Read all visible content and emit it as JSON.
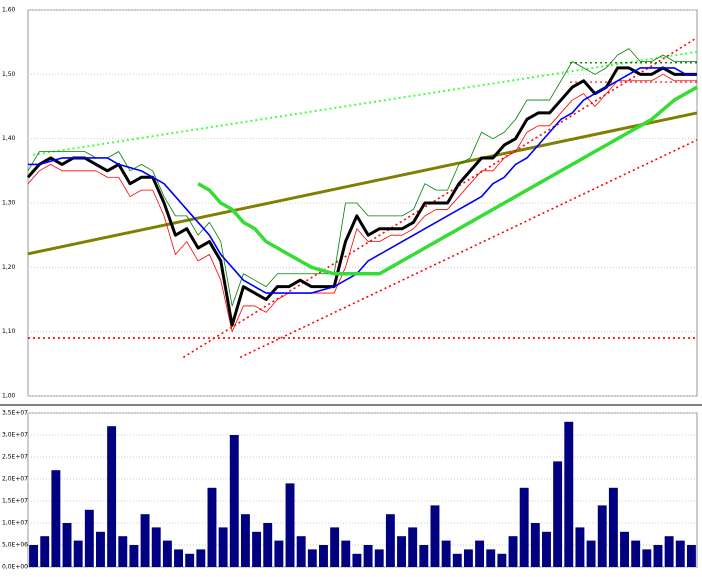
{
  "chart_data": [
    {
      "type": "line",
      "categories": [
        null,
        null,
        null,
        null,
        null,
        null,
        null,
        null,
        null,
        null,
        null,
        null,
        null,
        null,
        null,
        null,
        null,
        null,
        null,
        null,
        null,
        null,
        null,
        null,
        null,
        null,
        null,
        null,
        null,
        null,
        null,
        null,
        null,
        null,
        null,
        null,
        null,
        null,
        null,
        null,
        null,
        null,
        null,
        null,
        null,
        null,
        null,
        null,
        null,
        null,
        null,
        null,
        null,
        null,
        null,
        null,
        null,
        null,
        null,
        null
      ],
      "ylim": [
        1.0,
        1.6
      ],
      "yticks": [
        {
          "value": 1.0,
          "label": "1,00"
        },
        {
          "value": 1.1,
          "label": "1,10"
        },
        {
          "value": 1.2,
          "label": "1,20"
        },
        {
          "value": 1.3,
          "label": "1,30"
        },
        {
          "value": 1.4,
          "label": "1,40"
        },
        {
          "value": 1.5,
          "label": "1,50"
        },
        {
          "value": 1.6,
          "label": "1,60"
        }
      ],
      "grid": true,
      "series": [
        {
          "color": "#008000",
          "width": 0.8,
          "values": [
            1.35,
            1.38,
            1.38,
            1.38,
            1.38,
            1.38,
            1.37,
            1.37,
            1.38,
            1.35,
            1.36,
            1.35,
            1.31,
            1.28,
            1.28,
            1.25,
            1.27,
            1.24,
            1.14,
            1.19,
            1.18,
            1.17,
            1.19,
            1.19,
            1.19,
            1.19,
            1.19,
            1.19,
            1.3,
            1.3,
            1.28,
            1.28,
            1.28,
            1.28,
            1.29,
            1.33,
            1.32,
            1.32,
            1.36,
            1.37,
            1.41,
            1.4,
            1.41,
            1.43,
            1.46,
            1.46,
            1.46,
            1.49,
            1.52,
            1.51,
            1.5,
            1.51,
            1.53,
            1.54,
            1.52,
            1.52,
            1.53,
            1.52,
            1.52,
            1.52
          ]
        },
        {
          "color": "#ff0000",
          "width": 0.8,
          "values": [
            1.33,
            1.35,
            1.36,
            1.35,
            1.35,
            1.35,
            1.35,
            1.34,
            1.34,
            1.31,
            1.32,
            1.32,
            1.28,
            1.22,
            1.24,
            1.21,
            1.22,
            1.18,
            1.1,
            1.14,
            1.14,
            1.13,
            1.15,
            1.16,
            1.16,
            1.16,
            1.16,
            1.16,
            1.2,
            1.26,
            1.24,
            1.24,
            1.25,
            1.25,
            1.26,
            1.28,
            1.29,
            1.29,
            1.31,
            1.33,
            1.35,
            1.35,
            1.37,
            1.38,
            1.41,
            1.42,
            1.42,
            1.44,
            1.46,
            1.47,
            1.45,
            1.47,
            1.49,
            1.49,
            1.49,
            1.49,
            1.5,
            1.49,
            1.49,
            1.49
          ]
        },
        {
          "color": "#000000",
          "width": 3,
          "values": [
            1.34,
            1.36,
            1.37,
            1.36,
            1.37,
            1.37,
            1.36,
            1.35,
            1.36,
            1.33,
            1.34,
            1.34,
            1.3,
            1.25,
            1.26,
            1.23,
            1.24,
            1.21,
            1.11,
            1.17,
            1.16,
            1.15,
            1.17,
            1.17,
            1.18,
            1.17,
            1.17,
            1.17,
            1.24,
            1.28,
            1.25,
            1.26,
            1.26,
            1.26,
            1.27,
            1.3,
            1.3,
            1.3,
            1.33,
            1.35,
            1.37,
            1.37,
            1.39,
            1.4,
            1.43,
            1.44,
            1.44,
            1.46,
            1.48,
            1.49,
            1.47,
            1.48,
            1.51,
            1.51,
            1.5,
            1.5,
            1.51,
            1.5,
            1.5,
            1.5
          ]
        },
        {
          "color": "#0000ff",
          "width": 1.6,
          "values": [
            1.36,
            1.36,
            1.365,
            1.37,
            1.37,
            1.37,
            1.37,
            1.37,
            1.36,
            1.355,
            1.35,
            1.34,
            1.33,
            1.31,
            1.29,
            1.27,
            1.25,
            1.22,
            1.2,
            1.18,
            1.17,
            1.16,
            1.16,
            1.16,
            1.16,
            1.16,
            1.165,
            1.17,
            1.18,
            1.19,
            1.21,
            1.22,
            1.23,
            1.24,
            1.25,
            1.26,
            1.27,
            1.28,
            1.29,
            1.3,
            1.31,
            1.33,
            1.34,
            1.36,
            1.37,
            1.39,
            1.41,
            1.43,
            1.44,
            1.46,
            1.47,
            1.48,
            1.49,
            1.5,
            1.51,
            1.51,
            1.51,
            1.51,
            1.5,
            1.5
          ]
        },
        {
          "color": "#33dd33",
          "width": 3.5,
          "values": [
            null,
            null,
            null,
            null,
            null,
            null,
            null,
            null,
            null,
            null,
            null,
            null,
            null,
            null,
            null,
            1.33,
            1.32,
            1.3,
            1.29,
            1.27,
            1.26,
            1.24,
            1.23,
            1.22,
            1.21,
            1.2,
            1.195,
            1.19,
            1.19,
            1.19,
            1.19,
            1.19,
            1.2,
            1.21,
            1.22,
            1.23,
            1.24,
            1.25,
            1.26,
            1.27,
            1.28,
            1.29,
            1.3,
            1.31,
            1.32,
            1.33,
            1.34,
            1.35,
            1.36,
            1.37,
            1.38,
            1.39,
            1.4,
            1.41,
            1.42,
            1.43,
            1.445,
            1.46,
            1.47,
            1.48
          ]
        }
      ],
      "trend_lines": [
        {
          "color": "#808000",
          "width": 3,
          "dash": "solid",
          "x": [
            0,
            59
          ],
          "values": [
            1.221,
            1.44
          ]
        },
        {
          "color": "#44ff44",
          "width": 2,
          "dash": "dotted",
          "x": [
            0.44,
            59
          ],
          "values": [
            1.375,
            1.535
          ]
        },
        {
          "color": "#ff0000",
          "width": 1.6,
          "dash": "dotted",
          "x": [
            0,
            59
          ],
          "values": [
            1.09,
            1.09
          ]
        },
        {
          "color": "#ff0000",
          "width": 1.6,
          "dash": "dotted",
          "x": [
            13.7,
            59
          ],
          "values": [
            1.06,
            1.557
          ]
        },
        {
          "color": "#ff0000",
          "width": 1.6,
          "dash": "dotted",
          "x": [
            18.7,
            59
          ],
          "values": [
            1.06,
            1.398
          ]
        },
        {
          "color": "#006600",
          "width": 1.2,
          "dash": "dotted",
          "x": [
            47.8,
            59
          ],
          "values": [
            1.518,
            1.518
          ]
        },
        {
          "color": "#ff0000",
          "width": 1.2,
          "dash": "dotted",
          "x": [
            47.8,
            59
          ],
          "values": [
            1.488,
            1.488
          ]
        }
      ]
    },
    {
      "type": "bar",
      "categories": [
        null,
        null,
        null,
        null,
        null,
        null,
        null,
        null,
        null,
        null,
        null,
        null,
        null,
        null,
        null,
        null,
        null,
        null,
        null,
        null,
        null,
        null,
        null,
        null,
        null,
        null,
        null,
        null,
        null,
        null,
        null,
        null,
        null,
        null,
        null,
        null,
        null,
        null,
        null,
        null,
        null,
        null,
        null,
        null,
        null,
        null,
        null,
        null,
        null,
        null,
        null,
        null,
        null,
        null,
        null,
        null,
        null,
        null,
        null,
        null
      ],
      "color": "#000080",
      "ylim": [
        0,
        35000000
      ],
      "yticks": [
        {
          "value": 0,
          "label": "0,0E+00"
        },
        {
          "value": 5000000,
          "label": "5,0E+06"
        },
        {
          "value": 10000000,
          "label": "1,0E+07"
        },
        {
          "value": 15000000,
          "label": "1,5E+07"
        },
        {
          "value": 20000000,
          "label": "2,0E+07"
        },
        {
          "value": 25000000,
          "label": "2,5E+07"
        },
        {
          "value": 30000000,
          "label": "3,0E+07"
        },
        {
          "value": 35000000,
          "label": "3,5E+07"
        }
      ],
      "grid": true,
      "values": [
        5000000,
        7000000,
        22000000,
        10000000,
        6000000,
        13000000,
        8000000,
        32000000,
        7000000,
        5000000,
        12000000,
        9000000,
        6000000,
        4000000,
        3000000,
        4000000,
        18000000,
        9000000,
        30000000,
        12000000,
        8000000,
        10000000,
        6000000,
        19000000,
        7000000,
        4000000,
        5000000,
        9000000,
        6000000,
        3000000,
        5000000,
        4000000,
        12000000,
        7000000,
        9000000,
        5000000,
        14000000,
        6000000,
        3000000,
        4000000,
        6000000,
        4000000,
        3000000,
        7000000,
        18000000,
        10000000,
        8000000,
        24000000,
        33000000,
        9000000,
        6000000,
        14000000,
        18000000,
        8000000,
        6000000,
        4000000,
        5000000,
        7000000,
        6000000,
        5000000
      ]
    }
  ]
}
